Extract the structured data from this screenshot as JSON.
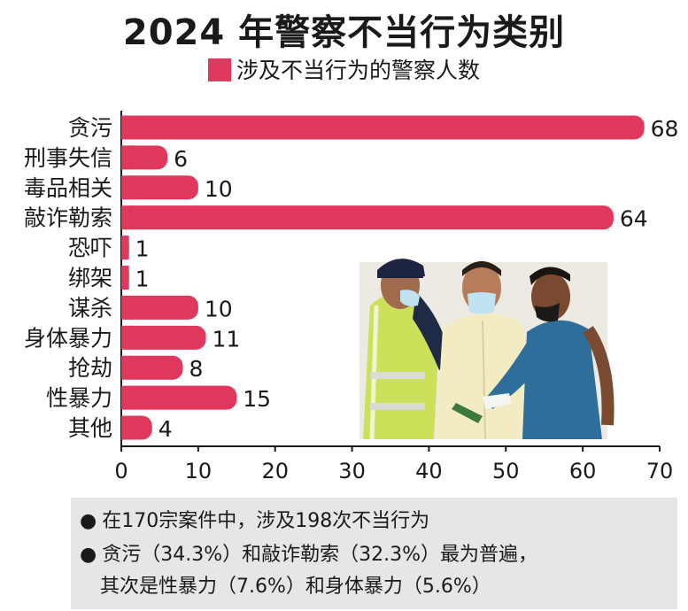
{
  "chart_data": {
    "type": "bar",
    "orientation": "horizontal",
    "title": "2024 年警察不当行为类别",
    "series": [
      {
        "name": "涉及不当行为的警察人数",
        "color": "#e0375c",
        "values": [
          68,
          6,
          10,
          64,
          1,
          1,
          10,
          11,
          8,
          15,
          4
        ]
      }
    ],
    "categories": [
      "贪污",
      "刑事失信",
      "毒品相关",
      "敲诈勒索",
      "恐吓",
      "绑架",
      "谋杀",
      "身体暴力",
      "抢劫",
      "性暴力",
      "其他"
    ],
    "xlim": [
      0,
      70
    ],
    "xticks": [
      0,
      10,
      20,
      30,
      40,
      50,
      60,
      70
    ],
    "grid": false,
    "legend_position": "top-center"
  },
  "notes": [
    "在170宗案件中，涉及198次不当行为",
    "贪污（34.3%）和敲诈勒索（32.3%）最为普遍，",
    "其次是性暴力（7.6%）和身体暴力（5.6%）"
  ],
  "bullet_symbol": "●"
}
